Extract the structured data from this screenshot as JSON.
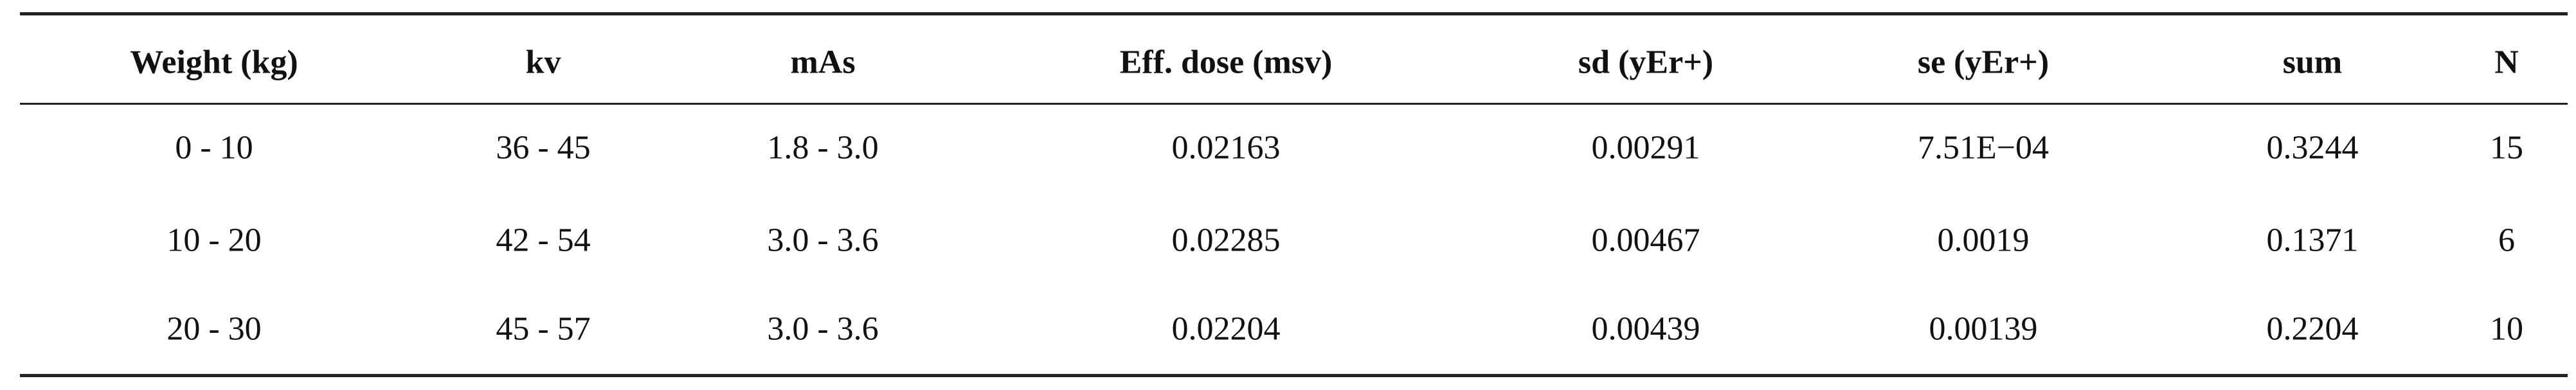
{
  "table": {
    "header": [
      "Weight (kg)",
      "kv",
      "mAs",
      "Eff. dose (msv)",
      "sd (yEr+)",
      "se (yEr+)",
      "sum",
      "N"
    ],
    "rows": [
      [
        "0 - 10",
        "36 - 45",
        "1.8 - 3.0",
        "0.02163",
        "0.00291",
        "7.51E−04",
        "0.3244",
        "15"
      ],
      [
        "10 - 20",
        "42 - 54",
        "3.0 - 3.6",
        "0.02285",
        "0.00467",
        "0.0019",
        "0.1371",
        "6"
      ],
      [
        "20 - 30",
        "45 - 57",
        "3.0 - 3.6",
        "0.02204",
        "0.00439",
        "0.00139",
        "0.2204",
        "10"
      ]
    ]
  }
}
